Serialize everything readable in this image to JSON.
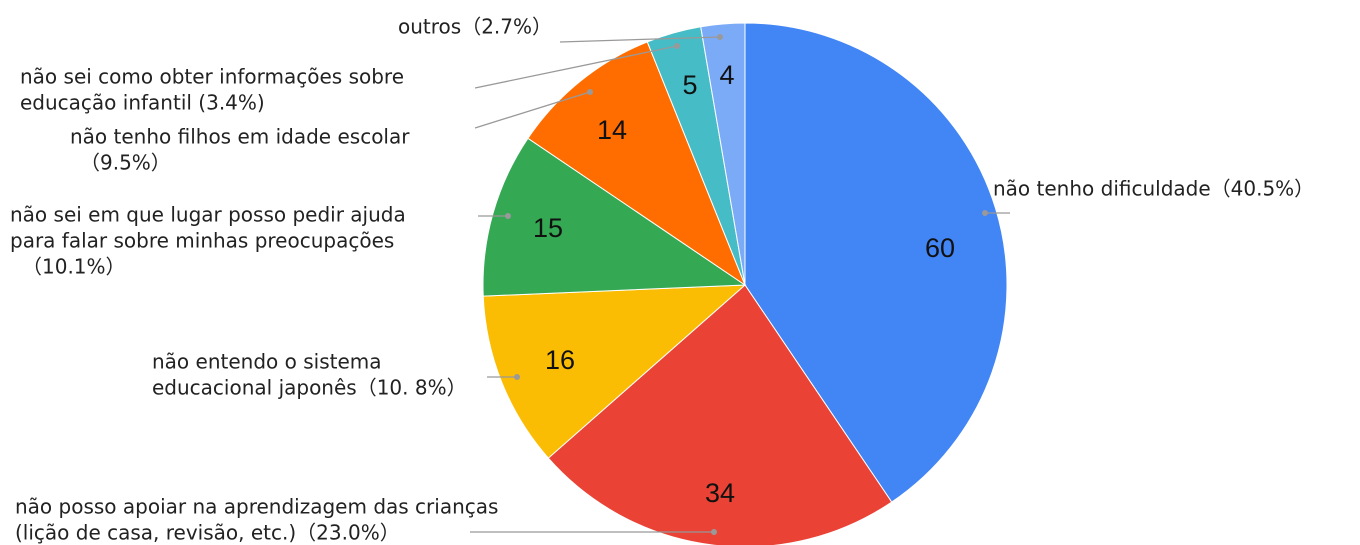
{
  "chart_data": {
    "type": "pie",
    "categories": [
      [
        "não tenho dificuldade（40.5%）"
      ],
      [
        "não posso apoiar na aprendizagem das crianças",
        "(lição de casa, revisão, etc.)（23.0%）"
      ],
      [
        "não entendo o sistema",
        "educacional japonês（10. 8%）"
      ],
      [
        "não sei em que lugar posso pedir ajuda",
        "para falar sobre minhas preocupações",
        "（10.1%）"
      ],
      [
        "não tenho filhos em idade escolar",
        "（9.5%）"
      ],
      [
        "não sei como obter informações sobre",
        "educação infantil (3.4%)"
      ],
      [
        "outros（2.7%）"
      ]
    ],
    "values": [
      60,
      34,
      16,
      15,
      14,
      5,
      4
    ],
    "colors": [
      "#4285f4",
      "#ea4335",
      "#fbbc04",
      "#34a853",
      "#ff6d01",
      "#46bdc6",
      "#7baaf7"
    ]
  }
}
